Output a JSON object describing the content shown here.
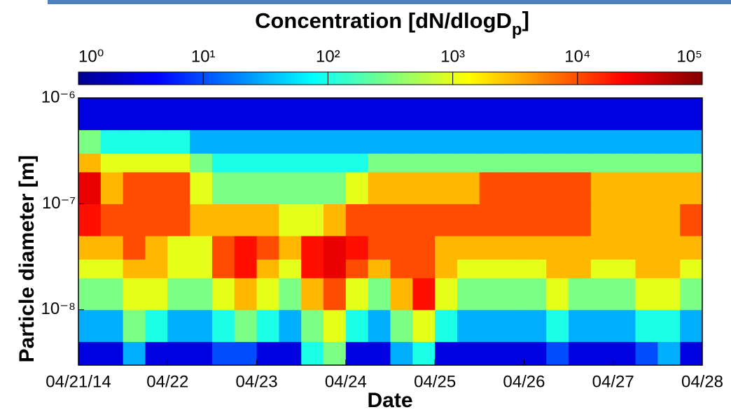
{
  "chart_data": {
    "type": "heatmap",
    "title": [
      "Concentration [dN/dlogD",
      "p",
      "]"
    ],
    "x_label": "Date",
    "y_label": "Particle diameter [m]",
    "colormap": "jet",
    "colorbar_log": true,
    "clim": [
      1,
      100000
    ],
    "cticks": [
      {
        "value": 1,
        "label": "10⁰"
      },
      {
        "value": 10,
        "label": "10¹"
      },
      {
        "value": 100,
        "label": "10²"
      },
      {
        "value": 1000,
        "label": "10³"
      },
      {
        "value": 10000,
        "label": "10⁴"
      },
      {
        "value": 100000,
        "label": "10⁵"
      }
    ],
    "y_log": true,
    "ylim": [
      3e-09,
      1e-06
    ],
    "yticks": [
      {
        "value": 1e-08,
        "label": "10⁻⁸"
      },
      {
        "value": 1e-07,
        "label": "10⁻⁷"
      },
      {
        "value": 1e-06,
        "label": "10⁻⁶"
      }
    ],
    "xlim": [
      "2014-04-21",
      "2014-04-28"
    ],
    "xticks": [
      {
        "value": "2014-04-21",
        "label": "04/21/14"
      },
      {
        "value": "2014-04-22",
        "label": "04/22"
      },
      {
        "value": "2014-04-23",
        "label": "04/23"
      },
      {
        "value": "2014-04-24",
        "label": "04/24"
      },
      {
        "value": "2014-04-25",
        "label": "04/25"
      },
      {
        "value": "2014-04-26",
        "label": "04/26"
      },
      {
        "value": "2014-04-27",
        "label": "04/27"
      },
      {
        "value": "2014-04-28",
        "label": "04/28"
      }
    ],
    "x_bins": [
      "2014-04-21T00:00",
      "2014-04-21T06:00",
      "2014-04-21T12:00",
      "2014-04-21T18:00",
      "2014-04-22T00:00",
      "2014-04-22T06:00",
      "2014-04-22T12:00",
      "2014-04-22T18:00",
      "2014-04-23T00:00",
      "2014-04-23T06:00",
      "2014-04-23T12:00",
      "2014-04-23T18:00",
      "2014-04-24T00:00",
      "2014-04-24T06:00",
      "2014-04-24T12:00",
      "2014-04-24T18:00",
      "2014-04-25T00:00",
      "2014-04-25T06:00",
      "2014-04-25T12:00",
      "2014-04-25T18:00",
      "2014-04-26T00:00",
      "2014-04-26T06:00",
      "2014-04-26T12:00",
      "2014-04-26T18:00",
      "2014-04-27T00:00",
      "2014-04-27T06:00",
      "2014-04-27T12:00",
      "2014-04-27T18:00",
      "2014-04-28T00:00"
    ],
    "y_bins": [
      3e-09,
      5e-09,
      1e-08,
      2e-08,
      3e-08,
      5e-08,
      1e-07,
      2e-07,
      3e-07,
      5e-07,
      1e-06
    ],
    "z": [
      [
        3,
        3,
        30,
        3,
        3,
        3,
        10,
        10,
        3,
        3,
        100,
        300,
        3,
        3,
        30,
        100,
        3,
        3,
        3,
        3,
        3,
        10,
        3,
        3,
        3,
        10,
        30,
        3
      ],
      [
        30,
        30,
        300,
        100,
        30,
        30,
        100,
        300,
        100,
        30,
        300,
        1000,
        100,
        30,
        300,
        1000,
        100,
        30,
        30,
        30,
        30,
        100,
        30,
        30,
        30,
        100,
        100,
        30
      ],
      [
        300,
        300,
        1000,
        1000,
        300,
        300,
        1000,
        3000,
        1000,
        300,
        3000,
        10000,
        1000,
        300,
        3000,
        20000,
        1000,
        300,
        300,
        300,
        300,
        1000,
        300,
        300,
        300,
        1000,
        1000,
        300
      ],
      [
        1000,
        1000,
        3000,
        3000,
        1000,
        1000,
        10000,
        20000,
        3000,
        1000,
        20000,
        30000,
        10000,
        3000,
        10000,
        10000,
        3000,
        1000,
        1000,
        1000,
        1000,
        3000,
        3000,
        1000,
        1000,
        3000,
        3000,
        1000
      ],
      [
        3000,
        3000,
        10000,
        3000,
        1000,
        1000,
        10000,
        20000,
        10000,
        3000,
        20000,
        30000,
        20000,
        10000,
        10000,
        10000,
        3000,
        3000,
        3000,
        3000,
        3000,
        3000,
        3000,
        3000,
        3000,
        3000,
        3000,
        3000
      ],
      [
        20000,
        10000,
        10000,
        10000,
        10000,
        3000,
        3000,
        3000,
        3000,
        1000,
        1000,
        3000,
        10000,
        10000,
        10000,
        10000,
        10000,
        10000,
        10000,
        10000,
        10000,
        10000,
        10000,
        3000,
        3000,
        3000,
        3000,
        10000
      ],
      [
        30000,
        3000,
        10000,
        10000,
        10000,
        1000,
        300,
        300,
        300,
        300,
        300,
        300,
        1000,
        3000,
        3000,
        3000,
        3000,
        3000,
        10000,
        10000,
        10000,
        10000,
        10000,
        3000,
        3000,
        3000,
        3000,
        3000
      ],
      [
        3000,
        1000,
        1000,
        1000,
        1000,
        300,
        100,
        100,
        100,
        100,
        100,
        100,
        100,
        300,
        300,
        300,
        300,
        300,
        300,
        300,
        300,
        300,
        300,
        300,
        300,
        300,
        300,
        300
      ],
      [
        300,
        100,
        100,
        100,
        100,
        30,
        30,
        30,
        30,
        30,
        30,
        30,
        30,
        30,
        30,
        30,
        30,
        30,
        30,
        30,
        30,
        30,
        30,
        30,
        30,
        30,
        30,
        30
      ],
      [
        3,
        3,
        3,
        3,
        3,
        3,
        3,
        3,
        3,
        3,
        3,
        3,
        3,
        3,
        3,
        3,
        3,
        3,
        3,
        3,
        3,
        3,
        3,
        3,
        3,
        3,
        3,
        3
      ]
    ]
  }
}
